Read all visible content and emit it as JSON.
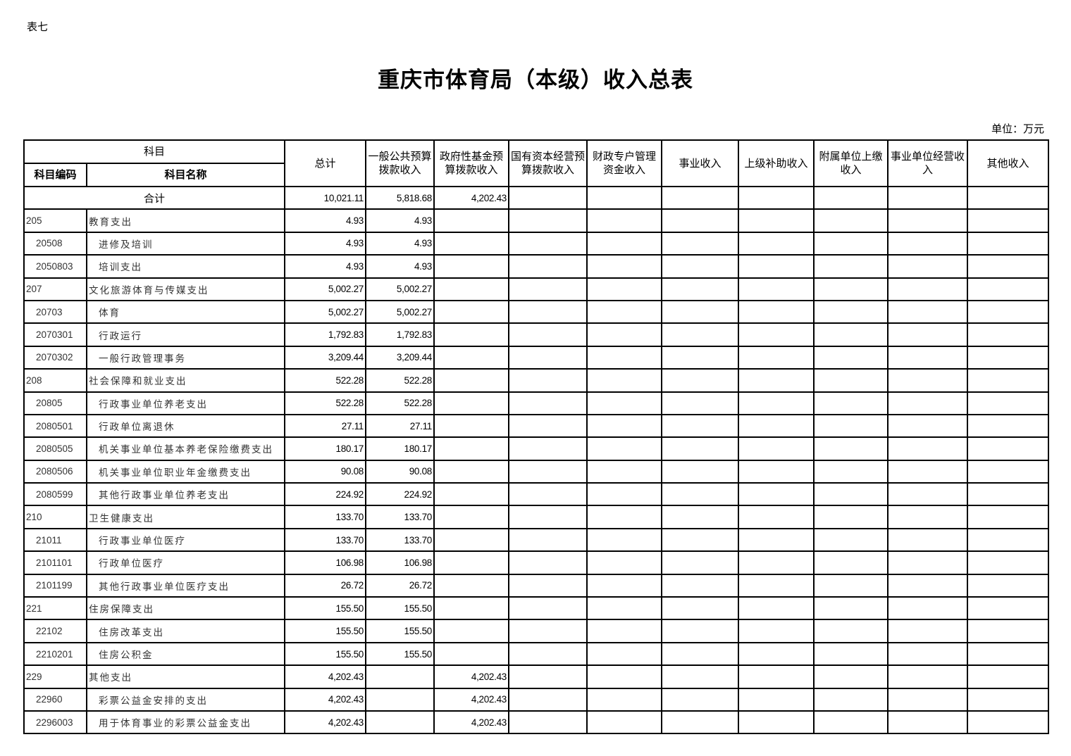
{
  "doc": {
    "label": "表七",
    "title": "重庆市体育局（本级）收入总表",
    "unit": "单位：万元"
  },
  "table": {
    "headers": {
      "subject": "科目",
      "code": "科目编码",
      "name": "科目名称",
      "columns": [
        "总计",
        "一般公共预算拨款收入",
        "政府性基金预算拨款收入",
        "国有资本经营预算拨款收入",
        "财政专户管理资金收入",
        "事业收入",
        "上级补助收入",
        "附属单位上缴收入",
        "事业单位经营收入",
        "其他收入"
      ]
    },
    "total": {
      "label": "合计",
      "values": [
        "10,021.11",
        "5,818.68",
        "4,202.43",
        "",
        "",
        "",
        "",
        "",
        "",
        ""
      ]
    },
    "rows": [
      {
        "code": "205",
        "name": "教育支出",
        "level": 1,
        "values": [
          "4.93",
          "4.93",
          ""
        ]
      },
      {
        "code": "20508",
        "name": "进修及培训",
        "level": 2,
        "values": [
          "4.93",
          "4.93",
          ""
        ]
      },
      {
        "code": "2050803",
        "name": "培训支出",
        "level": 3,
        "values": [
          "4.93",
          "4.93",
          ""
        ]
      },
      {
        "code": "207",
        "name": "文化旅游体育与传媒支出",
        "level": 1,
        "values": [
          "5,002.27",
          "5,002.27",
          ""
        ]
      },
      {
        "code": "20703",
        "name": "体育",
        "level": 2,
        "values": [
          "5,002.27",
          "5,002.27",
          ""
        ]
      },
      {
        "code": "2070301",
        "name": "行政运行",
        "level": 3,
        "values": [
          "1,792.83",
          "1,792.83",
          ""
        ]
      },
      {
        "code": "2070302",
        "name": "一般行政管理事务",
        "level": 3,
        "values": [
          "3,209.44",
          "3,209.44",
          ""
        ]
      },
      {
        "code": "208",
        "name": "社会保障和就业支出",
        "level": 1,
        "values": [
          "522.28",
          "522.28",
          ""
        ]
      },
      {
        "code": "20805",
        "name": "行政事业单位养老支出",
        "level": 2,
        "values": [
          "522.28",
          "522.28",
          ""
        ]
      },
      {
        "code": "2080501",
        "name": "行政单位离退休",
        "level": 3,
        "values": [
          "27.11",
          "27.11",
          ""
        ]
      },
      {
        "code": "2080505",
        "name": "机关事业单位基本养老保险缴费支出",
        "level": 3,
        "values": [
          "180.17",
          "180.17",
          ""
        ]
      },
      {
        "code": "2080506",
        "name": "机关事业单位职业年金缴费支出",
        "level": 3,
        "values": [
          "90.08",
          "90.08",
          ""
        ]
      },
      {
        "code": "2080599",
        "name": "其他行政事业单位养老支出",
        "level": 3,
        "values": [
          "224.92",
          "224.92",
          ""
        ]
      },
      {
        "code": "210",
        "name": "卫生健康支出",
        "level": 1,
        "values": [
          "133.70",
          "133.70",
          ""
        ]
      },
      {
        "code": "21011",
        "name": "行政事业单位医疗",
        "level": 2,
        "values": [
          "133.70",
          "133.70",
          ""
        ]
      },
      {
        "code": "2101101",
        "name": "行政单位医疗",
        "level": 3,
        "values": [
          "106.98",
          "106.98",
          ""
        ]
      },
      {
        "code": "2101199",
        "name": "其他行政事业单位医疗支出",
        "level": 3,
        "values": [
          "26.72",
          "26.72",
          ""
        ]
      },
      {
        "code": "221",
        "name": "住房保障支出",
        "level": 1,
        "values": [
          "155.50",
          "155.50",
          ""
        ]
      },
      {
        "code": "22102",
        "name": "住房改革支出",
        "level": 2,
        "values": [
          "155.50",
          "155.50",
          ""
        ]
      },
      {
        "code": "2210201",
        "name": "住房公积金",
        "level": 3,
        "values": [
          "155.50",
          "155.50",
          ""
        ]
      },
      {
        "code": "229",
        "name": "其他支出",
        "level": 1,
        "values": [
          "4,202.43",
          "",
          "4,202.43"
        ]
      },
      {
        "code": "22960",
        "name": "彩票公益金安排的支出",
        "level": 2,
        "values": [
          "4,202.43",
          "",
          "4,202.43"
        ]
      },
      {
        "code": "2296003",
        "name": "用于体育事业的彩票公益金支出",
        "level": 3,
        "values": [
          "4,202.43",
          "",
          "4,202.43"
        ]
      }
    ]
  }
}
